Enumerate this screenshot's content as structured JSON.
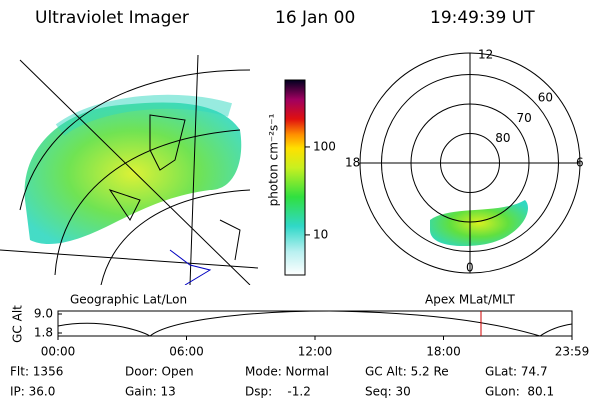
{
  "header": {
    "title": "Ultraviolet Imager",
    "date": "16 Jan 00",
    "time": "19:49:39 UT"
  },
  "colorbar": {
    "unit": "photon cm⁻²s⁻¹",
    "range": [
      3.5,
      577
    ],
    "ticks": [
      10,
      100
    ],
    "log": true
  },
  "polar": {
    "mlat_rings": [
      80,
      70,
      60
    ],
    "mlt_labels": {
      "top": 12,
      "left": 18,
      "right": 6,
      "bottom": 0
    }
  },
  "panels": {
    "left_caption": "Geographic Lat/Lon",
    "right_caption": "Apex MLat/MLT"
  },
  "altitude_plot": {
    "ylabel": "GC Alt",
    "ylim": [
      1.8,
      9.0
    ],
    "yticks": [
      {
        "value": 9.0,
        "label": "9.0"
      },
      {
        "value": 1.8,
        "label": "1.8"
      }
    ],
    "time_ticks": [
      "00:00",
      "06:00",
      "12:00",
      "18:00",
      "23:59"
    ]
  },
  "info": [
    [
      "Flt: 1356",
      "Door: Open",
      "Mode: Normal",
      "GC Alt: 5.2 Re",
      "GLat: 74.7"
    ],
    [
      "IP: 36.0",
      "Gain: 13",
      "Dsp:    -1.2",
      "Seq: 30",
      "GLon:  80.1"
    ]
  ]
}
